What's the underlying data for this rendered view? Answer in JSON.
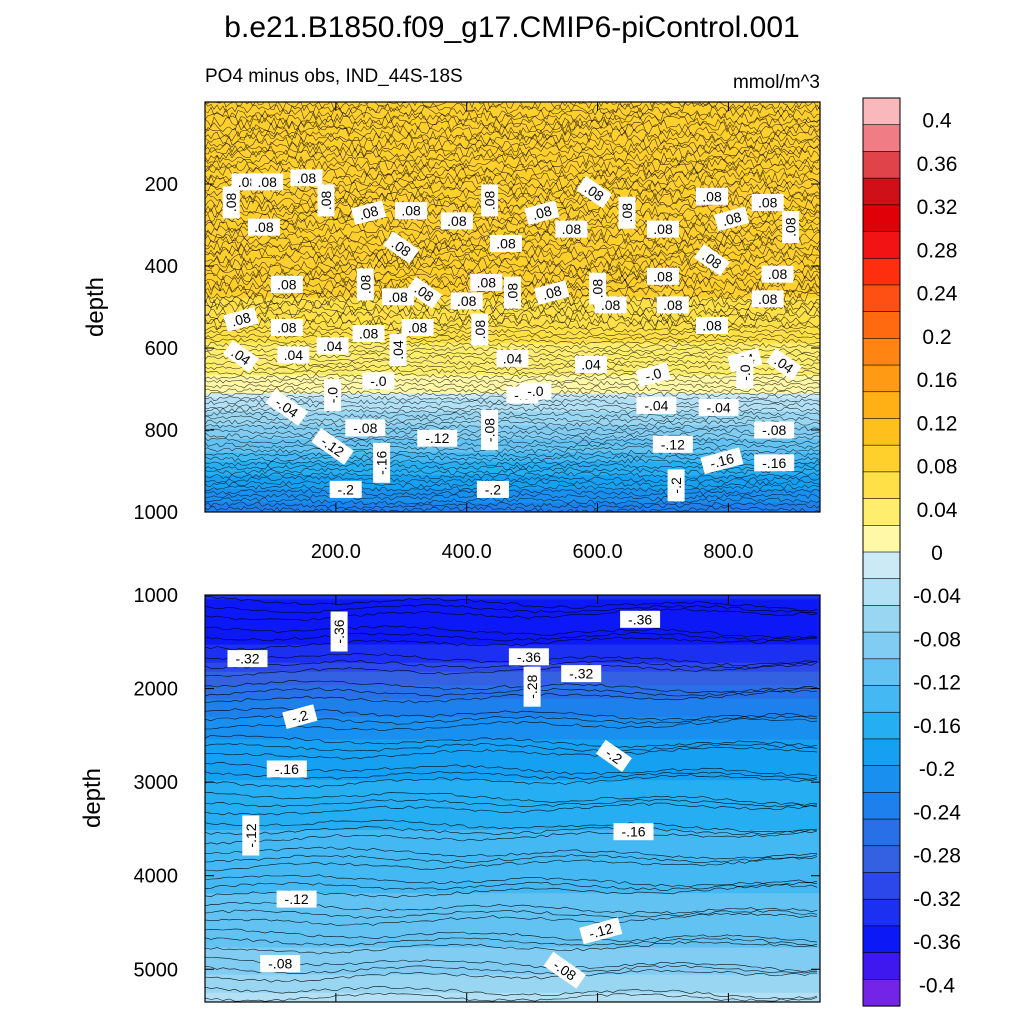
{
  "figure": {
    "title": "b.e21.B1850.f09_g17.CMIP6-piControl.001",
    "subtitle_left": "PO4 minus obs, IND_44S-18S",
    "subtitle_right": "mmol/m^3"
  },
  "chart_data": [
    {
      "type": "contour",
      "name": "upper",
      "x_ticks": [
        200,
        400,
        600,
        800
      ],
      "x_tick_labels": [
        "200.0",
        "400.0",
        "600.0",
        "800.0"
      ],
      "xlim": [
        0,
        940
      ],
      "y_ticks": [
        200,
        400,
        600,
        800,
        1000
      ],
      "y_tick_labels": [
        "200",
        "400",
        "600",
        "800",
        "1000"
      ],
      "ylim": [
        0,
        1000
      ],
      "ylabel": "depth",
      "contour_levels_by_depth": [
        {
          "depth": 0,
          "value": 0.09
        },
        {
          "depth": 150,
          "value": 0.09
        },
        {
          "depth": 300,
          "value": 0.085
        },
        {
          "depth": 450,
          "value": 0.08
        },
        {
          "depth": 550,
          "value": 0.06
        },
        {
          "depth": 650,
          "value": 0.03
        },
        {
          "depth": 700,
          "value": 0.01
        },
        {
          "depth": 720,
          "value": -0.02
        },
        {
          "depth": 800,
          "value": -0.08
        },
        {
          "depth": 870,
          "value": -0.14
        },
        {
          "depth": 950,
          "value": -0.2
        },
        {
          "depth": 1000,
          "value": -0.24
        }
      ],
      "contour_labels": [
        {
          "x": 40,
          "depth": 245,
          "text": ".08"
        },
        {
          "x": 65,
          "depth": 195,
          "text": ".08"
        },
        {
          "x": 95,
          "depth": 195,
          "text": ".08"
        },
        {
          "x": 90,
          "depth": 305,
          "text": ".08"
        },
        {
          "x": 155,
          "depth": 185,
          "text": ".08"
        },
        {
          "x": 185,
          "depth": 240,
          "text": ".08"
        },
        {
          "x": 250,
          "depth": 270,
          "text": ".08"
        },
        {
          "x": 300,
          "depth": 355,
          "text": ".08"
        },
        {
          "x": 315,
          "depth": 265,
          "text": ".08"
        },
        {
          "x": 385,
          "depth": 290,
          "text": ".08"
        },
        {
          "x": 435,
          "depth": 240,
          "text": ".08"
        },
        {
          "x": 460,
          "depth": 345,
          "text": ".08"
        },
        {
          "x": 515,
          "depth": 270,
          "text": ".08"
        },
        {
          "x": 560,
          "depth": 310,
          "text": ".08"
        },
        {
          "x": 595,
          "depth": 220,
          "text": ".08"
        },
        {
          "x": 645,
          "depth": 270,
          "text": ".08"
        },
        {
          "x": 700,
          "depth": 310,
          "text": ".08"
        },
        {
          "x": 775,
          "depth": 230,
          "text": ".08"
        },
        {
          "x": 805,
          "depth": 285,
          "text": ".08"
        },
        {
          "x": 860,
          "depth": 245,
          "text": ".08"
        },
        {
          "x": 895,
          "depth": 305,
          "text": ".08"
        },
        {
          "x": 775,
          "depth": 385,
          "text": ".08"
        },
        {
          "x": 700,
          "depth": 425,
          "text": ".08"
        },
        {
          "x": 620,
          "depth": 495,
          "text": ".08"
        },
        {
          "x": 530,
          "depth": 465,
          "text": ".08"
        },
        {
          "x": 470,
          "depth": 465,
          "text": ".08"
        },
        {
          "x": 430,
          "depth": 440,
          "text": ".08"
        },
        {
          "x": 400,
          "depth": 485,
          "text": ".08"
        },
        {
          "x": 335,
          "depth": 465,
          "text": ".08"
        },
        {
          "x": 295,
          "depth": 475,
          "text": ".08"
        },
        {
          "x": 245,
          "depth": 445,
          "text": ".08"
        },
        {
          "x": 125,
          "depth": 445,
          "text": ".08"
        },
        {
          "x": 715,
          "depth": 495,
          "text": ".08"
        },
        {
          "x": 860,
          "depth": 480,
          "text": ".08"
        },
        {
          "x": 875,
          "depth": 420,
          "text": ".08"
        },
        {
          "x": 600,
          "depth": 455,
          "text": ".08"
        },
        {
          "x": 55,
          "depth": 530,
          "text": ".08"
        },
        {
          "x": 125,
          "depth": 550,
          "text": ".08"
        },
        {
          "x": 250,
          "depth": 565,
          "text": ".08"
        },
        {
          "x": 325,
          "depth": 550,
          "text": ".08"
        },
        {
          "x": 420,
          "depth": 555,
          "text": ".08"
        },
        {
          "x": 775,
          "depth": 545,
          "text": ".08"
        },
        {
          "x": 55,
          "depth": 620,
          "text": ".04"
        },
        {
          "x": 135,
          "depth": 617,
          "text": ".04"
        },
        {
          "x": 195,
          "depth": 595,
          "text": ".04"
        },
        {
          "x": 295,
          "depth": 605,
          "text": ".04"
        },
        {
          "x": 470,
          "depth": 625,
          "text": ".04"
        },
        {
          "x": 590,
          "depth": 640,
          "text": ".04"
        },
        {
          "x": 825,
          "depth": 630,
          "text": ".04"
        },
        {
          "x": 885,
          "depth": 640,
          "text": ".04"
        },
        {
          "x": 195,
          "depth": 715,
          "text": "-.0"
        },
        {
          "x": 265,
          "depth": 680,
          "text": "-.0"
        },
        {
          "x": 485,
          "depth": 715,
          "text": "-.0"
        },
        {
          "x": 505,
          "depth": 705,
          "text": "-.0"
        },
        {
          "x": 685,
          "depth": 665,
          "text": "-.0"
        },
        {
          "x": 825,
          "depth": 660,
          "text": "-.0"
        },
        {
          "x": 125,
          "depth": 745,
          "text": "-.04"
        },
        {
          "x": 690,
          "depth": 740,
          "text": "-.04"
        },
        {
          "x": 785,
          "depth": 745,
          "text": "-.04"
        },
        {
          "x": 245,
          "depth": 795,
          "text": "-.08"
        },
        {
          "x": 435,
          "depth": 800,
          "text": "-.08"
        },
        {
          "x": 870,
          "depth": 800,
          "text": "-.08"
        },
        {
          "x": 355,
          "depth": 820,
          "text": "-.12"
        },
        {
          "x": 195,
          "depth": 840,
          "text": "-.12"
        },
        {
          "x": 715,
          "depth": 835,
          "text": "-.12"
        },
        {
          "x": 270,
          "depth": 880,
          "text": "-.16"
        },
        {
          "x": 790,
          "depth": 875,
          "text": "-.16"
        },
        {
          "x": 870,
          "depth": 880,
          "text": "-.16"
        },
        {
          "x": 215,
          "depth": 945,
          "text": "-.2"
        },
        {
          "x": 440,
          "depth": 945,
          "text": "-.2"
        },
        {
          "x": 720,
          "depth": 935,
          "text": "-.2"
        }
      ]
    },
    {
      "type": "contour",
      "name": "lower",
      "xlim": [
        0,
        940
      ],
      "y_ticks": [
        1000,
        2000,
        3000,
        4000,
        5000
      ],
      "y_tick_labels": [
        "1000",
        "2000",
        "3000",
        "4000",
        "5000"
      ],
      "ylim": [
        1000,
        5350
      ],
      "ylabel": "depth",
      "contour_levels_by_depth": [
        {
          "depth": 1000,
          "value": -0.34
        },
        {
          "depth": 1300,
          "value": -0.37
        },
        {
          "depth": 1700,
          "value": -0.33
        },
        {
          "depth": 2000,
          "value": -0.26
        },
        {
          "depth": 2500,
          "value": -0.2
        },
        {
          "depth": 3200,
          "value": -0.16
        },
        {
          "depth": 4000,
          "value": -0.13
        },
        {
          "depth": 4600,
          "value": -0.11
        },
        {
          "depth": 5000,
          "value": -0.08
        },
        {
          "depth": 5350,
          "value": -0.04
        }
      ],
      "contour_labels": [
        {
          "x": 205,
          "depth": 1390,
          "text": "-.36"
        },
        {
          "x": 495,
          "depth": 1660,
          "text": "-.36"
        },
        {
          "x": 665,
          "depth": 1260,
          "text": "-.36"
        },
        {
          "x": 65,
          "depth": 1680,
          "text": "-.32"
        },
        {
          "x": 575,
          "depth": 1840,
          "text": "-.32"
        },
        {
          "x": 500,
          "depth": 1980,
          "text": "-.28"
        },
        {
          "x": 145,
          "depth": 2300,
          "text": "-.2"
        },
        {
          "x": 625,
          "depth": 2720,
          "text": "-.2"
        },
        {
          "x": 125,
          "depth": 2860,
          "text": "-.16"
        },
        {
          "x": 655,
          "depth": 3530,
          "text": "-.16"
        },
        {
          "x": 70,
          "depth": 3570,
          "text": "-.12"
        },
        {
          "x": 140,
          "depth": 4250,
          "text": "-.12"
        },
        {
          "x": 605,
          "depth": 4590,
          "text": "-.12"
        },
        {
          "x": 115,
          "depth": 4940,
          "text": "-.08"
        },
        {
          "x": 550,
          "depth": 5010,
          "text": "-.08"
        }
      ]
    },
    {
      "type": "colorbar",
      "name": "legend",
      "tick_labels": [
        "0.4",
        "0.36",
        "0.32",
        "0.28",
        "0.24",
        "0.2",
        "0.16",
        "0.12",
        "0.08",
        "0.04",
        "0",
        "-0.04",
        "-0.08",
        "-0.12",
        "-0.16",
        "-0.2",
        "-0.24",
        "-0.28",
        "-0.32",
        "-0.36",
        "-0.4"
      ],
      "range": [
        -0.42,
        0.42
      ],
      "colors_top_to_bottom": [
        "#F8B8BC",
        "#F07D85",
        "#E0444A",
        "#D01018",
        "#E00008",
        "#F21414",
        "#FF2E0E",
        "#FF5014",
        "#FF6A10",
        "#FF8412",
        "#FF9A14",
        "#FFB014",
        "#FFC01E",
        "#FFD02C",
        "#FFE046",
        "#FFEE6E",
        "#FFF8A6",
        "#CCEAF6",
        "#B2E0F4",
        "#98D6F2",
        "#80CCF2",
        "#62C2F2",
        "#44B8F2",
        "#26AEF2",
        "#16A0F2",
        "#1990F0",
        "#1E80EC",
        "#2870E8",
        "#3460E2",
        "#2C48EA",
        "#1C30F2",
        "#0D18F6",
        "#3E18EE",
        "#7424E6"
      ]
    }
  ]
}
